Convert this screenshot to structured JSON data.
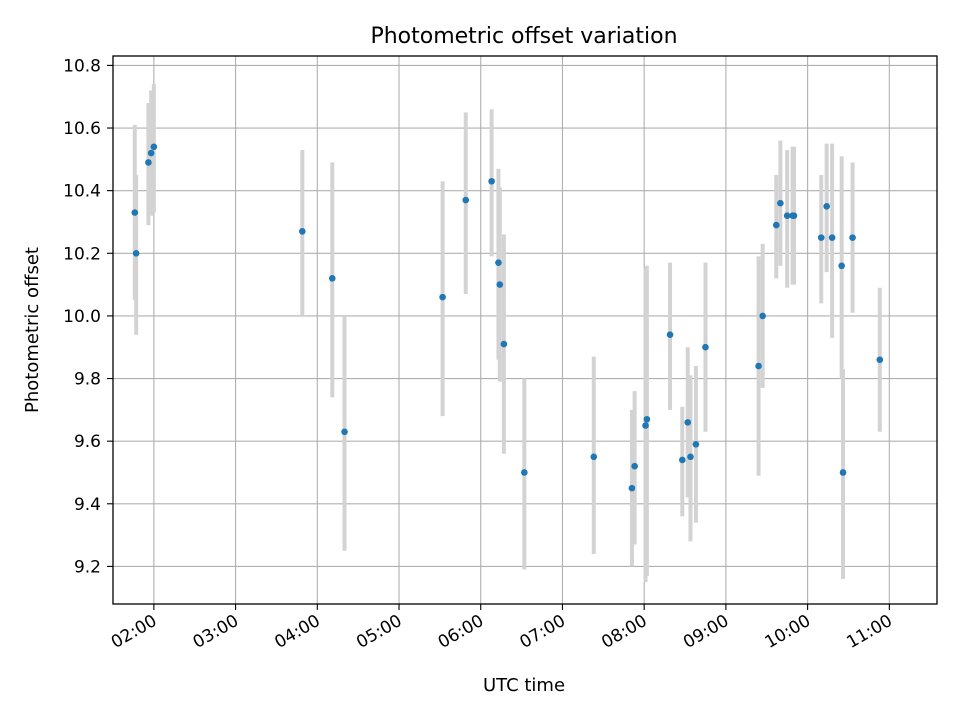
{
  "chart_data": {
    "type": "scatter",
    "title": "Photometric offset variation",
    "xlabel": "UTC time",
    "ylabel": "Photometric offset",
    "x_tick_labels": [
      "02:00",
      "03:00",
      "04:00",
      "05:00",
      "06:00",
      "07:00",
      "08:00",
      "09:00",
      "10:00",
      "11:00"
    ],
    "y_tick_labels": [
      "9.2",
      "9.4",
      "9.6",
      "9.8",
      "10.0",
      "10.2",
      "10.4",
      "10.6",
      "10.8"
    ],
    "y_ticks": [
      9.2,
      9.4,
      9.6,
      9.8,
      10.0,
      10.2,
      10.4,
      10.6,
      10.8
    ],
    "xlim": [
      "01:30",
      "11:35"
    ],
    "ylim": [
      9.08,
      10.83
    ],
    "grid": true,
    "marker_color": "#1f77b4",
    "errorbar_color": "#d3d3d3",
    "points": [
      {
        "x": "01:46",
        "y": 10.33,
        "lo": 10.05,
        "hi": 10.61
      },
      {
        "x": "01:47",
        "y": 10.2,
        "lo": 9.94,
        "hi": 10.45
      },
      {
        "x": "01:56",
        "y": 10.49,
        "lo": 10.29,
        "hi": 10.68
      },
      {
        "x": "01:58",
        "y": 10.52,
        "lo": 10.32,
        "hi": 10.72
      },
      {
        "x": "02:00",
        "y": 10.54,
        "lo": 10.33,
        "hi": 10.74
      },
      {
        "x": "03:49",
        "y": 10.27,
        "lo": 10.0,
        "hi": 10.53
      },
      {
        "x": "04:11",
        "y": 10.12,
        "lo": 9.74,
        "hi": 10.49
      },
      {
        "x": "04:20",
        "y": 9.63,
        "lo": 9.25,
        "hi": 10.0
      },
      {
        "x": "05:32",
        "y": 10.06,
        "lo": 9.68,
        "hi": 10.43
      },
      {
        "x": "05:49",
        "y": 10.37,
        "lo": 10.07,
        "hi": 10.65
      },
      {
        "x": "06:08",
        "y": 10.43,
        "lo": 10.19,
        "hi": 10.66
      },
      {
        "x": "06:13",
        "y": 10.17,
        "lo": 9.86,
        "hi": 10.47
      },
      {
        "x": "06:14",
        "y": 10.1,
        "lo": 9.79,
        "hi": 10.41
      },
      {
        "x": "06:17",
        "y": 9.91,
        "lo": 9.56,
        "hi": 10.26
      },
      {
        "x": "06:32",
        "y": 9.5,
        "lo": 9.19,
        "hi": 9.8
      },
      {
        "x": "07:23",
        "y": 9.55,
        "lo": 9.24,
        "hi": 9.87
      },
      {
        "x": "07:51",
        "y": 9.45,
        "lo": 9.2,
        "hi": 9.7
      },
      {
        "x": "07:53",
        "y": 9.52,
        "lo": 9.27,
        "hi": 9.76
      },
      {
        "x": "08:01",
        "y": 9.65,
        "lo": 9.15,
        "hi": 10.15
      },
      {
        "x": "08:02",
        "y": 9.67,
        "lo": 9.17,
        "hi": 10.16
      },
      {
        "x": "08:19",
        "y": 9.94,
        "lo": 9.7,
        "hi": 10.17
      },
      {
        "x": "08:28",
        "y": 9.54,
        "lo": 9.36,
        "hi": 9.71
      },
      {
        "x": "08:32",
        "y": 9.66,
        "lo": 9.42,
        "hi": 9.9
      },
      {
        "x": "08:34",
        "y": 9.55,
        "lo": 9.28,
        "hi": 9.81
      },
      {
        "x": "08:38",
        "y": 9.59,
        "lo": 9.34,
        "hi": 9.84
      },
      {
        "x": "08:45",
        "y": 9.9,
        "lo": 9.63,
        "hi": 10.17
      },
      {
        "x": "09:24",
        "y": 9.84,
        "lo": 9.49,
        "hi": 10.19
      },
      {
        "x": "09:27",
        "y": 10.0,
        "lo": 9.77,
        "hi": 10.23
      },
      {
        "x": "09:37",
        "y": 10.29,
        "lo": 10.12,
        "hi": 10.45
      },
      {
        "x": "09:40",
        "y": 10.36,
        "lo": 10.16,
        "hi": 10.56
      },
      {
        "x": "09:45",
        "y": 10.32,
        "lo": 10.09,
        "hi": 10.53
      },
      {
        "x": "09:49",
        "y": 10.32,
        "lo": 10.1,
        "hi": 10.54
      },
      {
        "x": "09:50",
        "y": 10.32,
        "lo": 10.1,
        "hi": 10.54
      },
      {
        "x": "10:10",
        "y": 10.25,
        "lo": 10.04,
        "hi": 10.45
      },
      {
        "x": "10:14",
        "y": 10.35,
        "lo": 10.14,
        "hi": 10.55
      },
      {
        "x": "10:18",
        "y": 10.25,
        "lo": 9.93,
        "hi": 10.55
      },
      {
        "x": "10:25",
        "y": 10.16,
        "lo": 9.8,
        "hi": 10.51
      },
      {
        "x": "10:26",
        "y": 9.5,
        "lo": 9.16,
        "hi": 9.83
      },
      {
        "x": "10:33",
        "y": 10.25,
        "lo": 10.01,
        "hi": 10.49
      },
      {
        "x": "10:53",
        "y": 9.86,
        "lo": 9.63,
        "hi": 10.09
      }
    ]
  }
}
